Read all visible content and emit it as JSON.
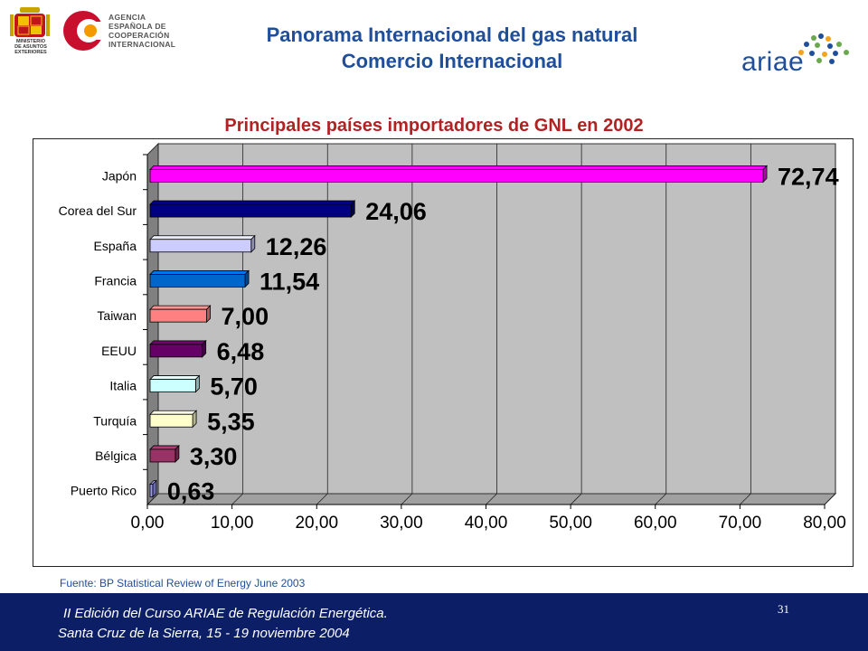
{
  "header": {
    "title_line1": "Panorama Internacional del gas natural",
    "title_line2": "Comercio Internacional",
    "agency_lines": [
      "AGENCIA",
      "ESPAÑOLA DE",
      "COOPERACIÓN",
      "INTERNACIONAL"
    ],
    "ministry_lines": [
      "MINISTERIO",
      "DE ASUNTOS",
      "EXTERIORES"
    ],
    "ariae_logo_text": "ariae"
  },
  "chart_data": {
    "type": "bar",
    "orientation": "horizontal",
    "title": "Principales países importadores de GNL en 2002",
    "categories": [
      "Japón",
      "Corea del Sur",
      "España",
      "Francia",
      "Taiwan",
      "EEUU",
      "Italia",
      "Turquía",
      "Bélgica",
      "Puerto Rico"
    ],
    "values": [
      72.74,
      24.06,
      12.26,
      11.54,
      7.0,
      6.48,
      5.7,
      5.35,
      3.3,
      0.63
    ],
    "value_labels": [
      "72,74",
      "24,06",
      "12,26",
      "11,54",
      "7,00",
      "6,48",
      "5,70",
      "5,35",
      "3,30",
      "0,63"
    ],
    "bar_colors": [
      "#ff00ff",
      "#000080",
      "#ccccff",
      "#0066cc",
      "#ff8080",
      "#660066",
      "#ccffff",
      "#ffffcc",
      "#993366",
      "#9999ff"
    ],
    "xlim": [
      0,
      80
    ],
    "xticks": [
      "0,00",
      "10,00",
      "20,00",
      "30,00",
      "40,00",
      "50,00",
      "60,00",
      "70,00",
      "80,00"
    ],
    "xtick_values": [
      0,
      10,
      20,
      30,
      40,
      50,
      60,
      70,
      80
    ],
    "grid": true,
    "plot_background": "#c0c0c0",
    "legend": "none"
  },
  "source": "Fuente: BP Statistical Review of Energy June 2003",
  "footer": {
    "line1": "II Edición del Curso ARIAE de Regulación Energética.",
    "line2": "Santa Cruz de la Sierra, 15 - 19 noviembre 2004",
    "page_number": "31",
    "background": "#0c1f66"
  }
}
